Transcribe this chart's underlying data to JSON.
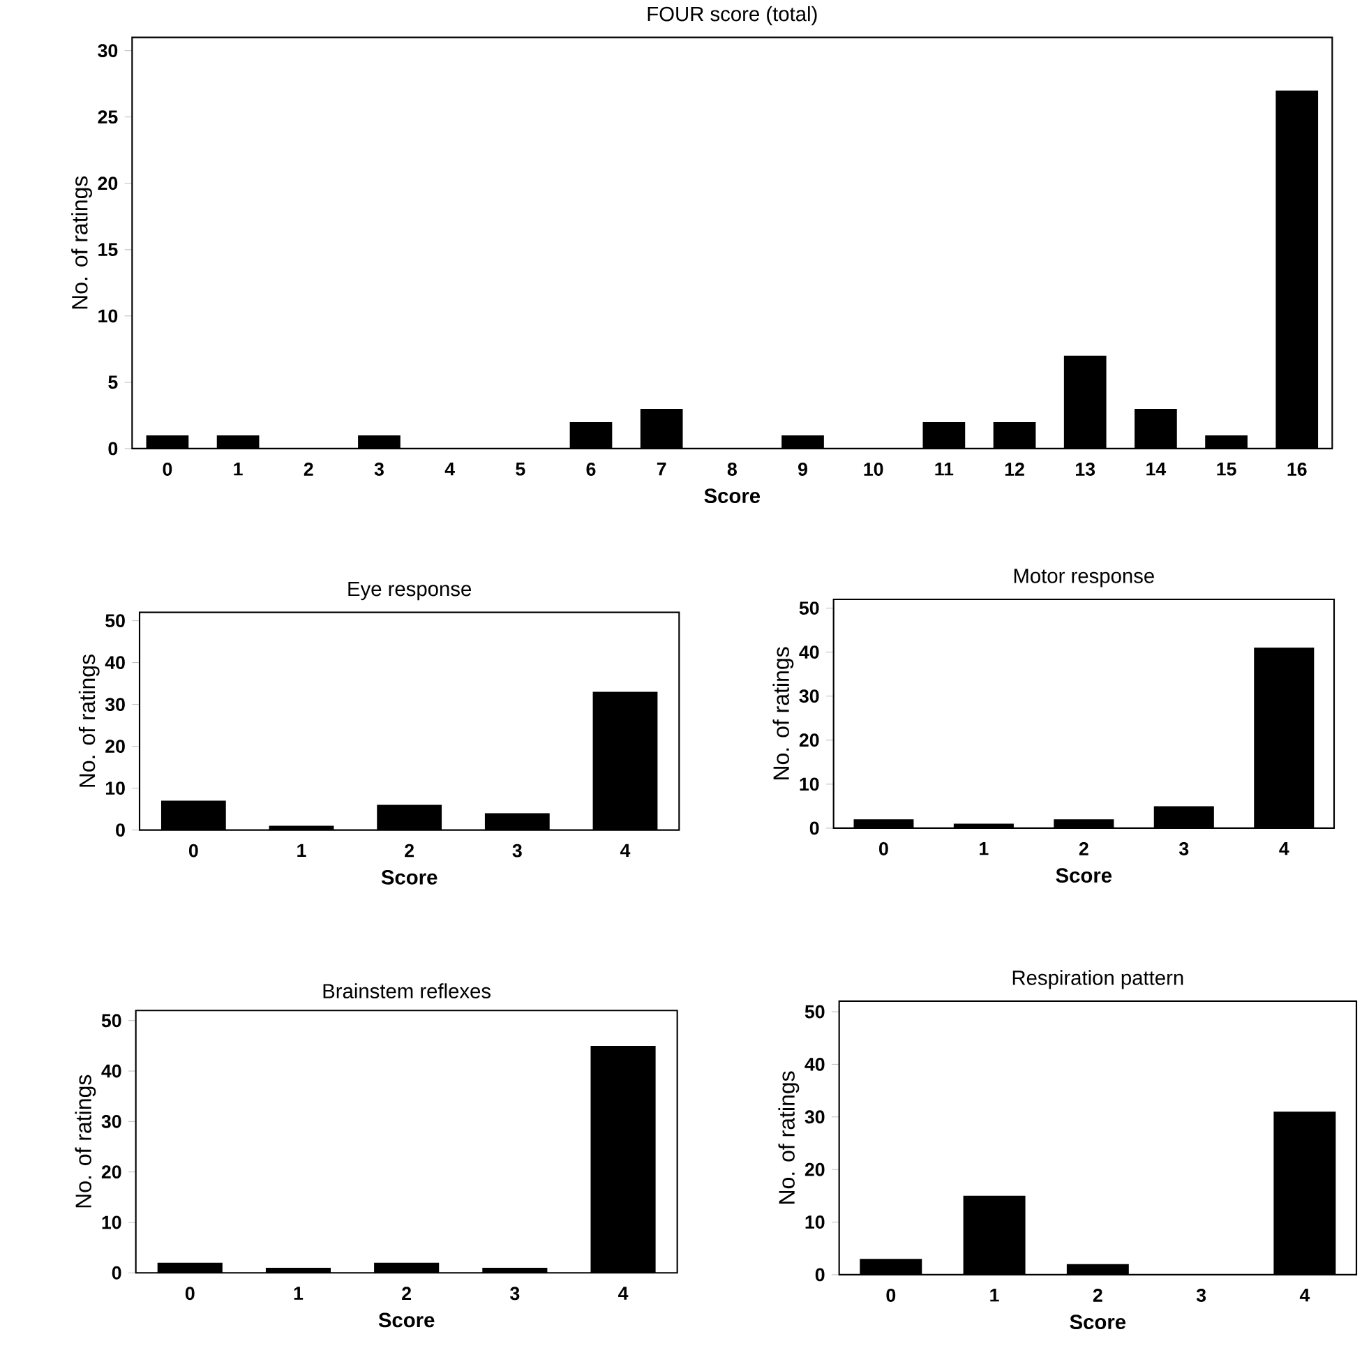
{
  "chart_data": [
    {
      "type": "bar",
      "title": "FOUR score (total)",
      "xlabel": "Score",
      "ylabel": "No. of ratings",
      "categories": [
        "0",
        "1",
        "2",
        "3",
        "4",
        "5",
        "6",
        "7",
        "8",
        "9",
        "10",
        "11",
        "12",
        "13",
        "14",
        "15",
        "16"
      ],
      "values": [
        1,
        1,
        0,
        1,
        0,
        0,
        2,
        3,
        0,
        1,
        0,
        2,
        2,
        7,
        3,
        1,
        27
      ],
      "color": "#000000",
      "ylim": [
        0,
        31
      ],
      "yticks": [
        0,
        5,
        10,
        15,
        20,
        25,
        30
      ]
    },
    {
      "type": "bar",
      "title": "Eye response",
      "xlabel": "Score",
      "ylabel": "No. of ratings",
      "categories": [
        "0",
        "1",
        "2",
        "3",
        "4"
      ],
      "values": [
        7,
        1,
        6,
        4,
        33
      ],
      "color": "#000000",
      "ylim": [
        0,
        52
      ],
      "yticks": [
        0,
        10,
        20,
        30,
        40,
        50
      ]
    },
    {
      "type": "bar",
      "title": "Motor response",
      "xlabel": "Score",
      "ylabel": "No. of ratings",
      "categories": [
        "0",
        "1",
        "2",
        "3",
        "4"
      ],
      "values": [
        2,
        1,
        2,
        5,
        41
      ],
      "color": "#000000",
      "ylim": [
        0,
        52
      ],
      "yticks": [
        0,
        10,
        20,
        30,
        40,
        50
      ]
    },
    {
      "type": "bar",
      "title": "Brainstem reflexes",
      "xlabel": "Score",
      "ylabel": "No. of ratings",
      "categories": [
        "0",
        "1",
        "2",
        "3",
        "4"
      ],
      "values": [
        2,
        1,
        2,
        1,
        45
      ],
      "color": "#000000",
      "ylim": [
        0,
        52
      ],
      "yticks": [
        0,
        10,
        20,
        30,
        40,
        50
      ]
    },
    {
      "type": "bar",
      "title": "Respiration pattern",
      "xlabel": "Score",
      "ylabel": "No. of ratings",
      "categories": [
        "0",
        "1",
        "2",
        "3",
        "4"
      ],
      "values": [
        3,
        15,
        2,
        0,
        31
      ],
      "color": "#000000",
      "ylim": [
        0,
        52
      ],
      "yticks": [
        0,
        10,
        20,
        30,
        40,
        50
      ]
    }
  ]
}
